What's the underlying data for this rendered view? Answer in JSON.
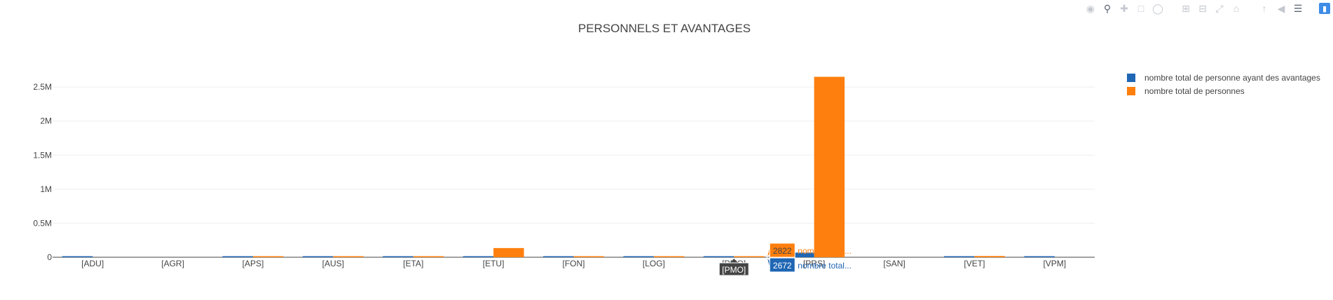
{
  "chart_data": {
    "type": "bar",
    "title": "PERSONNELS ET AVANTAGES",
    "categories": [
      "[ADU]",
      "[AGR]",
      "[APS]",
      "[AUS]",
      "[ETA]",
      "[ETU]",
      "[FON]",
      "[LOG]",
      "[PMO]",
      "[PRS]",
      "[SAN]",
      "[VET]",
      "[VPM]"
    ],
    "series": [
      {
        "name": "nombre total de personne ayant des avantages",
        "color": "#1f66b4",
        "values": [
          3000,
          0,
          2500,
          2000,
          2500,
          3500,
          14000,
          2000,
          2672,
          68000,
          0,
          3000,
          2500
        ]
      },
      {
        "name": "nombre total de personnes",
        "color": "#ff7f0e",
        "values": [
          0,
          0,
          3000,
          3000,
          2500,
          135000,
          4000,
          3500,
          2822,
          2650000,
          0,
          18000,
          0
        ]
      }
    ],
    "yticks": [
      "0",
      "0.5M",
      "1M",
      "1.5M",
      "2M",
      "2.5M"
    ],
    "ylim": [
      0,
      2800000
    ],
    "grid": true,
    "legend": "top-right",
    "hover": {
      "category_label": "[PMO]",
      "items": [
        {
          "value": "2822",
          "label": "nombre total..."
        },
        {
          "value": "2672",
          "label": "nombre total..."
        }
      ]
    }
  },
  "modebar": {
    "icons": [
      "camera-icon",
      "zoom-icon",
      "pan-icon",
      "box-select-icon",
      "lasso-icon",
      "zoom-in-icon",
      "zoom-out-icon",
      "autoscale-icon",
      "reset-axes-icon",
      "spike-lines-icon",
      "hover-closest-icon",
      "hover-compare-icon",
      "plotly-logo-icon"
    ]
  }
}
